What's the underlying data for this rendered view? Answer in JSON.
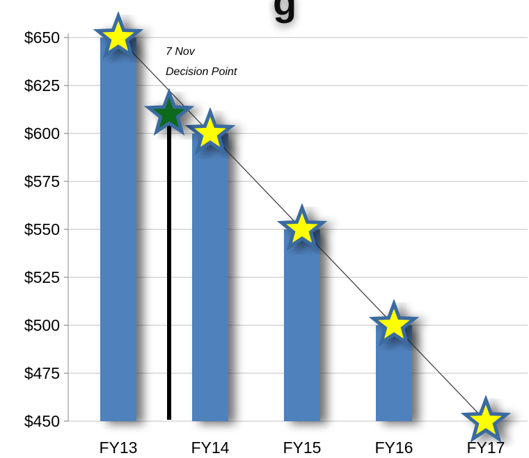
{
  "chart_data": {
    "type": "bar",
    "title_fragment": "g",
    "categories": [
      "FY13",
      "FY14",
      "FY15",
      "FY16",
      "FY17"
    ],
    "series": [
      {
        "values": [
          650,
          600,
          550,
          500,
          450
        ]
      }
    ],
    "trend_line": {
      "from": [
        "FY13",
        650
      ],
      "to": [
        "FY17",
        450
      ]
    },
    "markers": [
      {
        "position": "FY13",
        "value": 650,
        "color": "#ffff00"
      },
      {
        "position": "FY14",
        "value": 600,
        "color": "#ffff00"
      },
      {
        "position": "FY15",
        "value": 550,
        "color": "#ffff00"
      },
      {
        "position": "FY16",
        "value": 500,
        "color": "#ffff00"
      },
      {
        "position": "FY17",
        "value": 450,
        "color": "#ffff00"
      },
      {
        "position": "7 Nov",
        "value": 610,
        "color": "#0b6b1a"
      }
    ],
    "decision_point": {
      "date_label": "7 Nov",
      "label": "Decision Point",
      "value": 610
    },
    "y_ticks": [
      {
        "value": 450,
        "label": "$450"
      },
      {
        "value": 475,
        "label": "$475"
      },
      {
        "value": 500,
        "label": "$500"
      },
      {
        "value": 525,
        "label": "$525"
      },
      {
        "value": 550,
        "label": "$550"
      },
      {
        "value": 575,
        "label": "$575"
      },
      {
        "value": 600,
        "label": "$600"
      },
      {
        "value": 625,
        "label": "$625"
      },
      {
        "value": 650,
        "label": "$650"
      }
    ],
    "ylim": [
      450,
      650
    ],
    "grid": true,
    "legend": "none",
    "colors": {
      "bar": "#4f81bd",
      "star_fill": "#ffff00",
      "star_stroke": "#3a6aa0",
      "decision_star_fill": "#0b6b1a",
      "decision_line": "#000000",
      "trend_line": "#333333",
      "grid": "#c0c0c0"
    }
  }
}
